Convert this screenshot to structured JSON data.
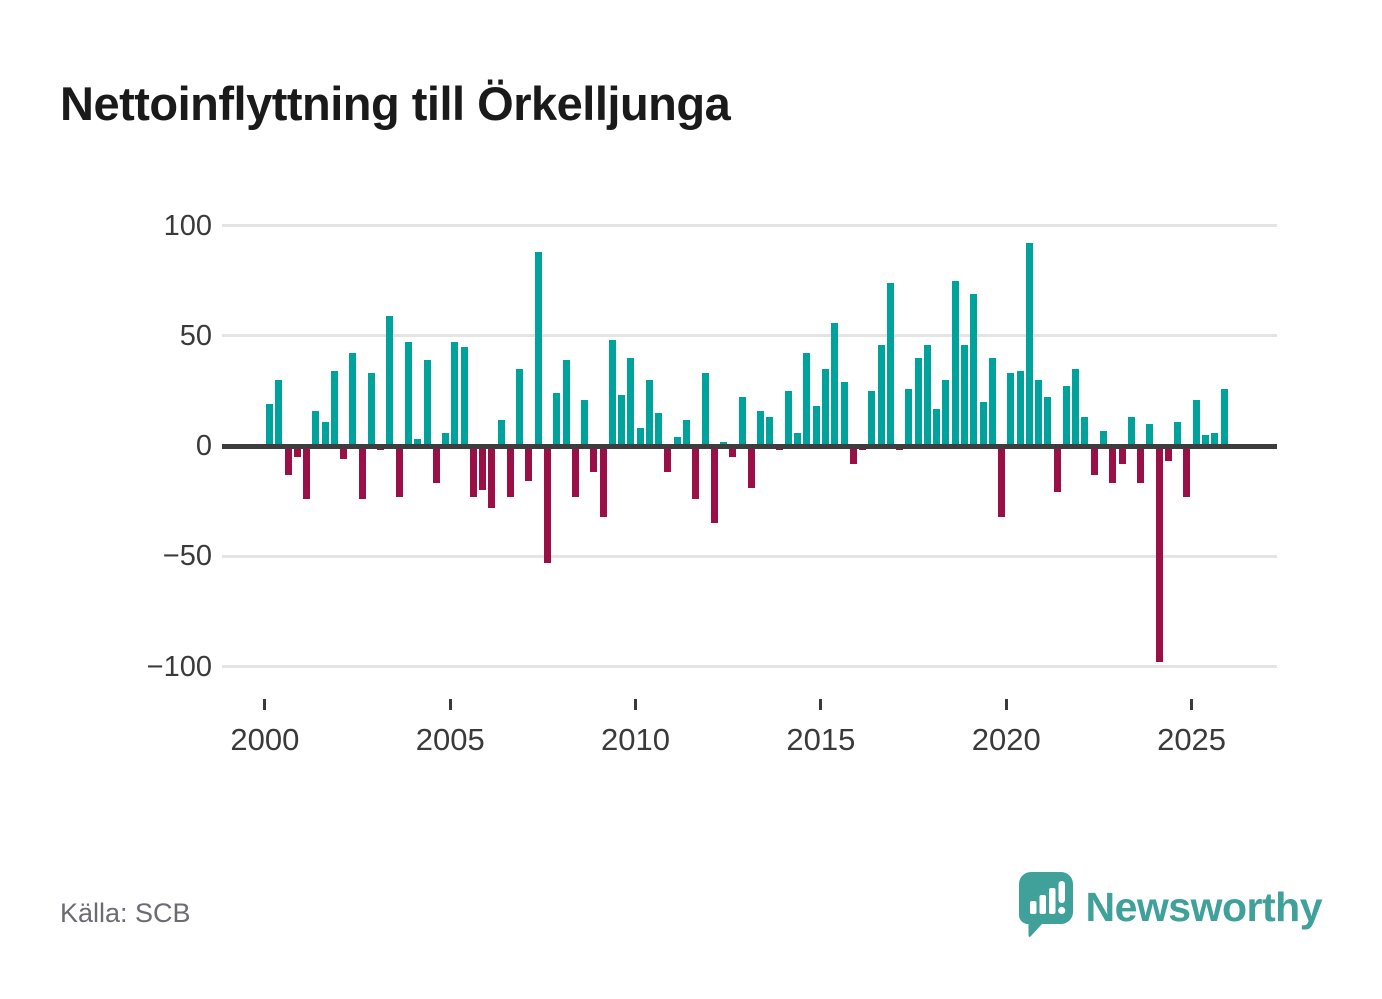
{
  "header": {
    "title": "Nettoinflyttning till Örkelljunga"
  },
  "footer": {
    "source": "Källa: SCB",
    "brand_name": "Newsworthy",
    "brand_color": "#3fa19a"
  },
  "chart_data": {
    "type": "bar",
    "title": "Nettoinflyttning till Örkelljunga",
    "frequency": "quarterly",
    "start": "2000Q1",
    "end": "2025Q4",
    "grid": true,
    "positive_color": "#00a39b",
    "negative_color": "#990f46",
    "ylim": [
      -110,
      110
    ],
    "y_ticks": [
      {
        "label": "100",
        "value": 100
      },
      {
        "label": "50",
        "value": 50
      },
      {
        "label": "0",
        "value": 0
      },
      {
        "label": "−50",
        "value": -50
      },
      {
        "label": "−100",
        "value": -100
      }
    ],
    "x_ticks": [
      {
        "label": "2000",
        "year": 2000
      },
      {
        "label": "2005",
        "year": 2005
      },
      {
        "label": "2010",
        "year": 2010
      },
      {
        "label": "2015",
        "year": 2015
      },
      {
        "label": "2020",
        "year": 2020
      },
      {
        "label": "2025",
        "year": 2025
      }
    ],
    "values": [
      19,
      30,
      -13,
      -5,
      -24,
      16,
      11,
      34,
      -6,
      42,
      -24,
      33,
      -2,
      59,
      -23,
      47,
      3,
      39,
      -17,
      6,
      47,
      45,
      -23,
      -20,
      -28,
      12,
      -23,
      35,
      -16,
      88,
      -53,
      24,
      39,
      -23,
      21,
      -12,
      -32,
      48,
      23,
      40,
      8,
      30,
      15,
      -12,
      4,
      12,
      -24,
      33,
      -35,
      2,
      -5,
      22,
      -19,
      16,
      13,
      -2,
      25,
      6,
      42,
      18,
      35,
      56,
      29,
      -8,
      -2,
      25,
      46,
      74,
      -2,
      26,
      40,
      46,
      17,
      30,
      75,
      46,
      69,
      20,
      40,
      -32,
      33,
      34,
      92,
      30,
      22,
      -21,
      27,
      35,
      13,
      -13,
      7,
      -17,
      -8,
      13,
      -17,
      10,
      -98,
      -7,
      11,
      -23,
      21,
      5,
      6,
      26
    ]
  }
}
